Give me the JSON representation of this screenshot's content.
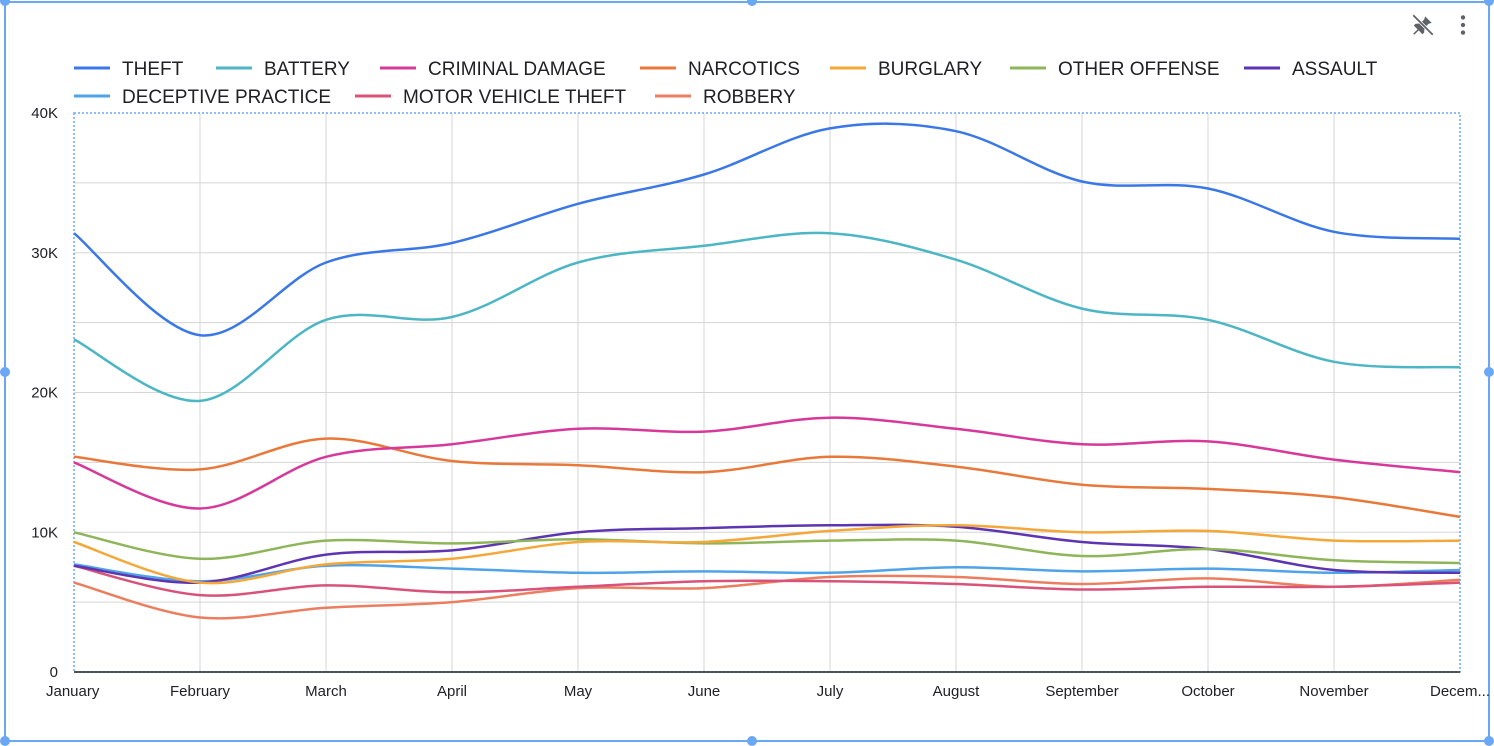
{
  "toolbar": {
    "pin_icon": "pin-off-icon",
    "menu_icon": "more-vert-icon"
  },
  "colors": {
    "selection": "#6aa7f5",
    "grid": "#d5d5d5",
    "axis": "#202124"
  },
  "chart_data": {
    "type": "line",
    "title": "",
    "xlabel": "",
    "ylabel": "",
    "categories": [
      "January",
      "February",
      "March",
      "April",
      "May",
      "June",
      "July",
      "August",
      "September",
      "October",
      "November",
      "December"
    ],
    "x_tick_labels": [
      "January",
      "February",
      "March",
      "April",
      "May",
      "June",
      "July",
      "August",
      "September",
      "October",
      "November",
      "Decem..."
    ],
    "y_ticks": [
      0,
      10000,
      20000,
      30000,
      40000
    ],
    "y_tick_labels": [
      "0",
      "10K",
      "20K",
      "30K",
      "40K"
    ],
    "ylim": [
      0,
      40000
    ],
    "grid": true,
    "smooth": true,
    "legend_position": "top",
    "series": [
      {
        "name": "THEFT",
        "color": "#3b78e7",
        "values": [
          31400,
          24100,
          29300,
          30700,
          33500,
          35600,
          38900,
          38700,
          35100,
          34600,
          31500,
          31000
        ]
      },
      {
        "name": "BATTERY",
        "color": "#4db6c4",
        "values": [
          23800,
          19400,
          25200,
          25400,
          29300,
          30500,
          31400,
          29500,
          26000,
          25200,
          22200,
          21800
        ]
      },
      {
        "name": "CRIMINAL DAMAGE",
        "color": "#d6399a",
        "values": [
          15000,
          11700,
          15400,
          16300,
          17400,
          17200,
          18200,
          17400,
          16300,
          16500,
          15200,
          14300
        ]
      },
      {
        "name": "NARCOTICS",
        "color": "#e8793a",
        "values": [
          15400,
          14500,
          16700,
          15100,
          14800,
          14300,
          15400,
          14700,
          13400,
          13100,
          12500,
          11100
        ]
      },
      {
        "name": "BURGLARY",
        "color": "#f4a83a",
        "values": [
          9300,
          6400,
          7700,
          8100,
          9300,
          9300,
          10100,
          10500,
          10000,
          10100,
          9400,
          9400
        ]
      },
      {
        "name": "OTHER OFFENSE",
        "color": "#8fb55a",
        "values": [
          10000,
          8100,
          9400,
          9200,
          9500,
          9200,
          9400,
          9400,
          8300,
          8800,
          8000,
          7800
        ]
      },
      {
        "name": "ASSAULT",
        "color": "#5e35b1",
        "values": [
          7600,
          6400,
          8400,
          8700,
          10000,
          10300,
          10500,
          10400,
          9300,
          8800,
          7300,
          7100
        ]
      },
      {
        "name": "DECEPTIVE PRACTICE",
        "color": "#4fa3e8",
        "values": [
          7700,
          6500,
          7600,
          7400,
          7100,
          7200,
          7100,
          7500,
          7200,
          7400,
          7100,
          7300
        ]
      },
      {
        "name": "MOTOR VEHICLE THEFT",
        "color": "#d8527a",
        "values": [
          7600,
          5500,
          6200,
          5700,
          6100,
          6500,
          6500,
          6300,
          5900,
          6100,
          6100,
          6400
        ]
      },
      {
        "name": "ROBBERY",
        "color": "#ec7e60",
        "values": [
          6400,
          3900,
          4600,
          5000,
          6000,
          6000,
          6800,
          6800,
          6300,
          6700,
          6100,
          6600
        ]
      }
    ]
  }
}
